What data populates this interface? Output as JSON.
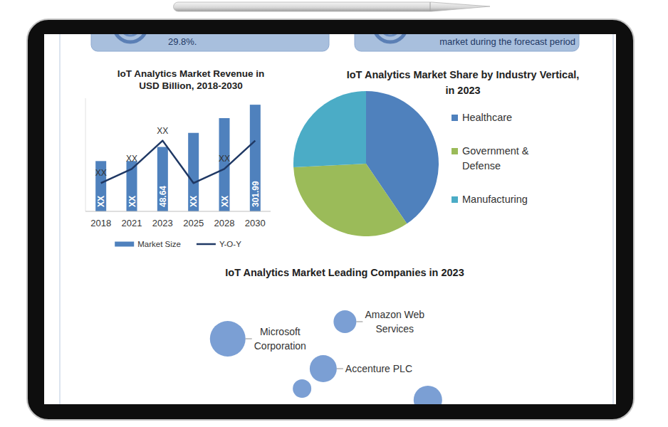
{
  "top_boxes": [
    {
      "text": "29.8%."
    },
    {
      "text": "market during the forecast period"
    }
  ],
  "chart_data": [
    {
      "type": "bar",
      "title": "IoT Analytics Market Revenue in USD Billion, 2018-2030",
      "categories": [
        "2018",
        "2021",
        "2023",
        "2025",
        "2028",
        "2030"
      ],
      "series": [
        {
          "name": "Market Size",
          "type": "bar",
          "color": "#4f81bd",
          "values": [
            26.4,
            26.4,
            48.64,
            89.3,
            169,
            301.99
          ],
          "value_labels": [
            "XX",
            "XX",
            "48.64",
            "XX",
            "XX",
            "301.99"
          ],
          "data_labels": true
        },
        {
          "name": "Y-O-Y",
          "type": "line",
          "color": "#1f3864",
          "axis": "y2",
          "values": [
            10,
            15,
            25,
            10,
            15,
            25
          ],
          "value_labels": [
            "XX",
            "XX",
            "XX",
            null,
            "XX",
            null
          ],
          "data_labels": true
        }
      ],
      "ylim": [
        3,
        400
      ],
      "log": "y",
      "y2lim": [
        0,
        40
      ],
      "tick_labels": "x",
      "legend": "bottom"
    },
    {
      "type": "pie",
      "title": "IoT Analytics Market Share by Industry Vertical, in 2023",
      "categories": [
        "Healthcare",
        "Government & Defense",
        "Manufacturing"
      ],
      "values": [
        40.5,
        33.7,
        25.8
      ],
      "colors": [
        "#4f81bd",
        "#9bbb59",
        "#4bacc6"
      ],
      "legend": "right"
    },
    {
      "type": "bubble",
      "title": "IoT Analytics Market Leading Companies in 2023",
      "categories": [
        "Microsoft Corporation",
        "Amazon Web Services",
        "Accenture PLC",
        null,
        null
      ],
      "x": [
        32.1,
        52.6,
        48.8,
        45.1,
        67.1
      ],
      "values": [
        62,
        74,
        41,
        27,
        19
      ],
      "sizes": [
        25,
        16,
        19,
        13,
        20
      ],
      "color": "#7b9fd4",
      "xlim": [
        0,
        100
      ],
      "ylim": [
        0,
        100
      ],
      "tick_labels": false
    }
  ]
}
